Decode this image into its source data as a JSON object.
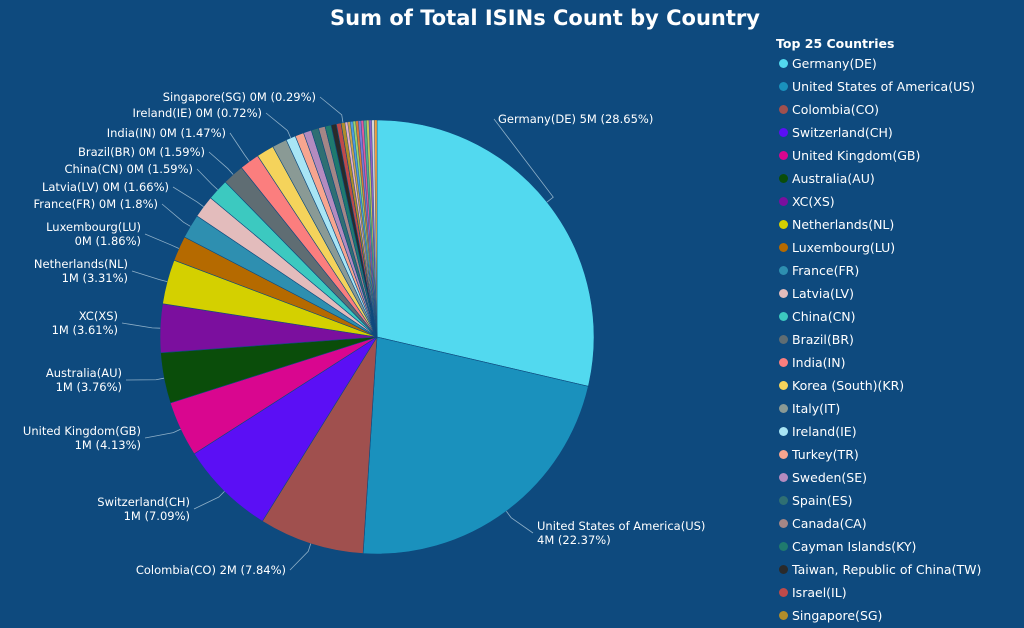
{
  "chart_data": {
    "type": "pie",
    "title": "Sum of Total ISINs Count by Country",
    "legend_title": "Top 25 Countries",
    "legend_position": "right",
    "slices": [
      {
        "name": "Germany(DE)",
        "percent": 28.65,
        "label": "Germany(DE) 5M (28.65%)",
        "color": "#52d9ef"
      },
      {
        "name": "United States of America(US)",
        "percent": 22.37,
        "label": "United States of America(US) 4M (22.37%)",
        "color": "#1a91bd"
      },
      {
        "name": "Colombia(CO)",
        "percent": 7.84,
        "label": "Colombia(CO) 2M (7.84%)",
        "color": "#a0504e"
      },
      {
        "name": "Switzerland(CH)",
        "percent": 7.09,
        "label": "Switzerland(CH) 1M (7.09%)",
        "color": "#5b0ff5"
      },
      {
        "name": "United Kingdom(GB)",
        "percent": 4.13,
        "label": "United Kingdom(GB) 1M (4.13%)",
        "color": "#d9068f"
      },
      {
        "name": "Australia(AU)",
        "percent": 3.76,
        "label": "Australia(AU) 1M (3.76%)",
        "color": "#0a4d0a"
      },
      {
        "name": "XC(XS)",
        "percent": 3.61,
        "label": "XC(XS) 1M (3.61%)",
        "color": "#7b0f9e"
      },
      {
        "name": "Netherlands(NL)",
        "percent": 3.31,
        "label": "Netherlands(NL) 1M (3.31%)",
        "color": "#d4d000"
      },
      {
        "name": "Luxembourg(LU)",
        "percent": 1.86,
        "label": "Luxembourg(LU) 0M (1.86%)",
        "color": "#b56a00"
      },
      {
        "name": "France(FR)",
        "percent": 1.8,
        "label": "France(FR) 0M (1.8%)",
        "color": "#2e8fb0"
      },
      {
        "name": "Latvia(LV)",
        "percent": 1.66,
        "label": "Latvia(LV) 0M (1.66%)",
        "color": "#e3bcbc"
      },
      {
        "name": "China(CN)",
        "percent": 1.59,
        "label": "China(CN) 0M (1.59%)",
        "color": "#3cc9c0"
      },
      {
        "name": "Brazil(BR)",
        "percent": 1.59,
        "label": "Brazil(BR) 0M (1.59%)",
        "color": "#5f6d73"
      },
      {
        "name": "India(IN)",
        "percent": 1.47,
        "label": "India(IN) 0M (1.47%)",
        "color": "#fb7e7e"
      },
      {
        "name": "Korea (South)(KR)",
        "percent": 1.3,
        "label": "",
        "color": "#f5d35b"
      },
      {
        "name": "Italy(IT)",
        "percent": 1.1,
        "label": "",
        "color": "#8a9a95"
      },
      {
        "name": "Ireland(IE)",
        "percent": 0.72,
        "label": "Ireland(IE) 0M (0.72%)",
        "color": "#a8e5f5"
      },
      {
        "name": "Turkey(TR)",
        "percent": 0.65,
        "label": "",
        "color": "#f7a58f"
      },
      {
        "name": "Sweden(SE)",
        "percent": 0.6,
        "label": "",
        "color": "#b48bbf"
      },
      {
        "name": "Spain(ES)",
        "percent": 0.55,
        "label": "",
        "color": "#2f6f73"
      },
      {
        "name": "Canada(CA)",
        "percent": 0.5,
        "label": "",
        "color": "#a48686"
      },
      {
        "name": "Cayman Islands(KY)",
        "percent": 0.45,
        "label": "",
        "color": "#1f7a6e"
      },
      {
        "name": "Taiwan, Republic of China(TW)",
        "percent": 0.4,
        "label": "",
        "color": "#2a2a2a"
      },
      {
        "name": "Israel(IL)",
        "percent": 0.35,
        "label": "",
        "color": "#bf4a4a"
      },
      {
        "name": "Singapore(SG)",
        "percent": 0.29,
        "label": "Singapore(SG) 0M (0.29%)",
        "color": "#b08d2a"
      }
    ],
    "other_slice_colors": [
      "#e8b0c8",
      "#c9a24b",
      "#4c9be0",
      "#9bd36b",
      "#d97a3a",
      "#7a7ad9",
      "#e05a9b",
      "#50b08f",
      "#c7c75a",
      "#8f5fc7",
      "#d8d8d8",
      "#f0a040"
    ]
  }
}
